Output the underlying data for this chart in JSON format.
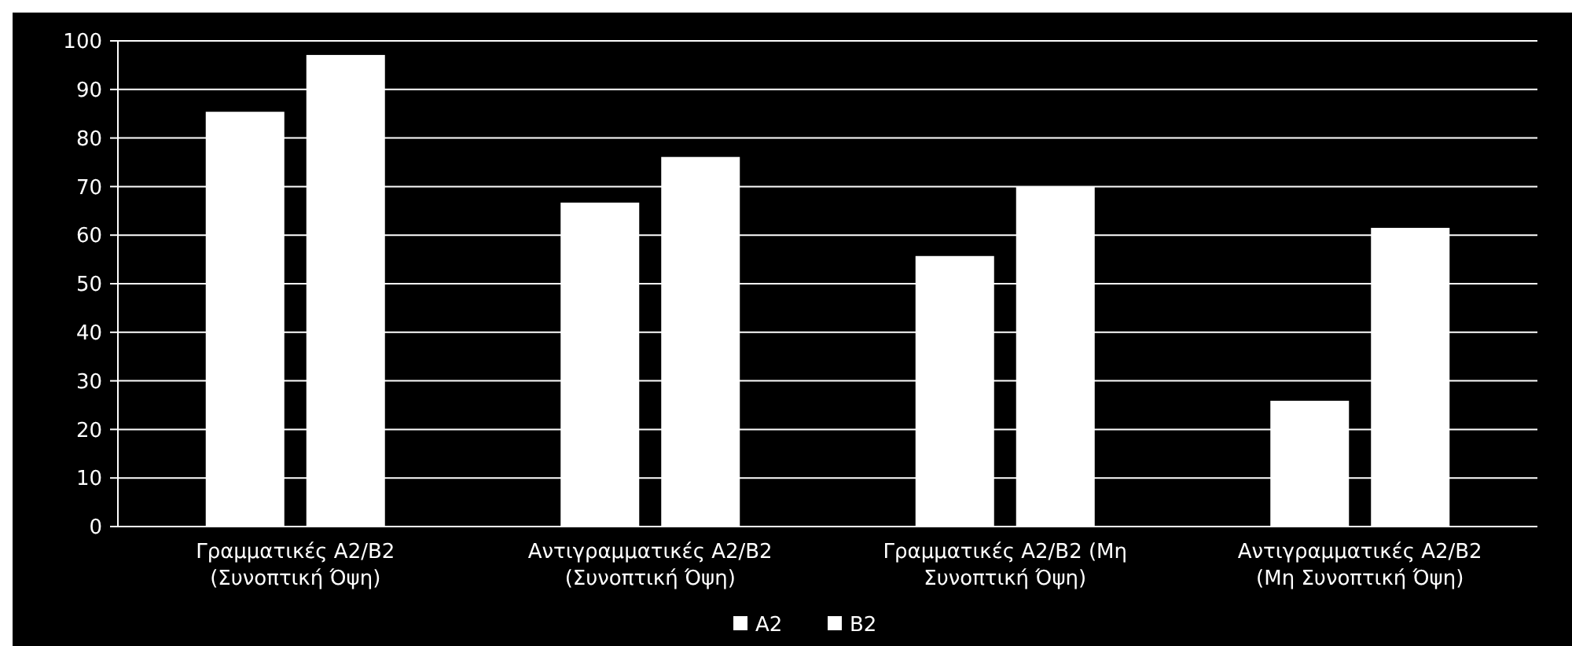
{
  "chart_data": {
    "type": "bar",
    "categories": [
      "Γραμματικές Α2/Β2\n(Συνοπτική Όψη)",
      "Αντιγραμματικές Α2/Β2\n(Συνοπτική Όψη)",
      "Γραμματικές Α2/Β2 (Μη\nΣυνοπτική Όψη)",
      "Αντιγραμματικές Α2/Β2\n(Μη Συνοπτική Όψη)"
    ],
    "series": [
      {
        "name": "Α2",
        "color": "#ffffff",
        "values": [
          85.4,
          66.7,
          55.7,
          25.9
        ]
      },
      {
        "name": "Β2",
        "color": "#ffffff",
        "values": [
          97.1,
          76.1,
          69.9,
          61.5
        ]
      }
    ],
    "ylim": [
      0,
      100
    ],
    "yticks": [
      0,
      10,
      20,
      30,
      40,
      50,
      60,
      70,
      80,
      90,
      100
    ],
    "grid": "y",
    "legend": "bottom"
  }
}
